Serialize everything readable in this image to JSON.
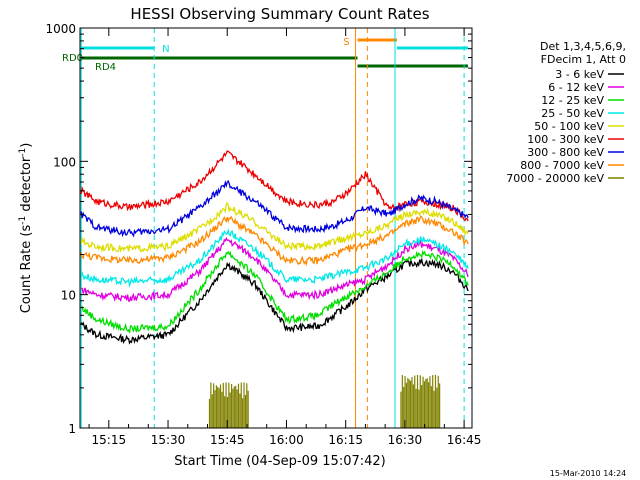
{
  "chart_data": {
    "type": "line",
    "title": "HESSI Observing Summary Count Rates",
    "xlabel": "Start Time (04-Sep-09 15:07:42)",
    "ylabel_main": "Count Rate (s",
    "ylabel_sup1": "-1",
    "ylabel_mid": " detector",
    "ylabel_sup2": "-1",
    "ylabel_end": ")",
    "yscale": "log",
    "ylim": [
      1,
      1000
    ],
    "xlim": [
      "15:07:42",
      "16:47:00"
    ],
    "xlim_min": [
      7.7,
      107
    ],
    "x_tick_labels": [
      "15:15",
      "15:30",
      "15:45",
      "16:00",
      "16:15",
      "16:30",
      "16:45"
    ],
    "x_ticks_min": [
      15,
      30,
      45,
      60,
      75,
      90,
      105
    ],
    "y_tick_labels": [
      "1",
      "10",
      "100",
      "1000"
    ],
    "y_ticks": [
      1,
      10,
      100,
      1000
    ],
    "legend_header": [
      "Det 1,3,4,5,6,9,",
      "FDecim 1, Att 0"
    ],
    "series": [
      {
        "name": "3 - 6 keV",
        "color": "#000000",
        "x": [
          8,
          12,
          20,
          30,
          38,
          45,
          52,
          60,
          68,
          72,
          76,
          80,
          86,
          90,
          94,
          98,
          102,
          106
        ],
        "y": [
          6,
          5,
          4.6,
          5,
          9,
          17,
          12,
          5.6,
          5.8,
          7,
          8.5,
          11,
          14,
          17,
          17.5,
          17,
          15,
          11
        ]
      },
      {
        "name": "6 - 12 keV",
        "color": "#e000e0",
        "x": [
          8,
          12,
          20,
          30,
          38,
          45,
          52,
          60,
          68,
          72,
          76,
          80,
          86,
          90,
          94,
          98,
          102,
          106
        ],
        "y": [
          11,
          10,
          9.5,
          10,
          15,
          26,
          19,
          10,
          10,
          11,
          12,
          13,
          17,
          22,
          24,
          22,
          19,
          14
        ]
      },
      {
        "name": "12 - 25 keV",
        "color": "#00dd00",
        "x": [
          8,
          12,
          20,
          30,
          38,
          45,
          52,
          60,
          68,
          72,
          76,
          80,
          86,
          90,
          94,
          98,
          102,
          106
        ],
        "y": [
          8,
          6.5,
          5.5,
          5.8,
          11,
          21,
          14,
          6.5,
          7,
          8.5,
          10,
          11.5,
          15,
          19,
          20,
          19,
          17,
          12
        ]
      },
      {
        "name": "25 - 50 keV",
        "color": "#00e8e8",
        "x": [
          8,
          12,
          20,
          30,
          38,
          45,
          52,
          60,
          68,
          72,
          76,
          80,
          86,
          90,
          94,
          98,
          102,
          106
        ],
        "y": [
          14,
          13,
          12.5,
          13,
          18,
          30,
          22,
          13,
          13,
          14,
          15,
          16,
          19,
          24,
          26,
          24,
          21,
          16
        ]
      },
      {
        "name": "50 - 100 keV",
        "color": "#dddd00",
        "x": [
          8,
          12,
          20,
          30,
          38,
          45,
          52,
          60,
          68,
          72,
          76,
          80,
          86,
          90,
          94,
          98,
          102,
          106
        ],
        "y": [
          25,
          23,
          22,
          23,
          31,
          46,
          35,
          23,
          23,
          25,
          27,
          29,
          34,
          40,
          42,
          40,
          36,
          29
        ]
      },
      {
        "name": "100 - 300 keV",
        "color": "#ee0000",
        "x": [
          8,
          12,
          20,
          30,
          38,
          45,
          52,
          60,
          68,
          72,
          76,
          80,
          86,
          90,
          94,
          98,
          102,
          106
        ],
        "y": [
          60,
          50,
          45,
          50,
          70,
          115,
          80,
          50,
          47,
          50,
          60,
          80,
          44,
          48,
          50,
          48,
          45,
          36
        ]
      },
      {
        "name": "300 - 800 keV",
        "color": "#0000dd",
        "x": [
          8,
          12,
          20,
          30,
          38,
          45,
          52,
          60,
          68,
          72,
          76,
          80,
          86,
          90,
          94,
          98,
          102,
          106
        ],
        "y": [
          40,
          32,
          29,
          31,
          45,
          68,
          50,
          32,
          31,
          33,
          37,
          45,
          40,
          48,
          53,
          50,
          44,
          38
        ]
      },
      {
        "name": "800 - 7000 keV",
        "color": "#ff8800",
        "x": [
          8,
          12,
          20,
          30,
          38,
          45,
          52,
          60,
          68,
          72,
          76,
          80,
          86,
          90,
          94,
          98,
          102,
          106
        ],
        "y": [
          20,
          19,
          18,
          19,
          25,
          38,
          28,
          18,
          18,
          20,
          22,
          24,
          28,
          34,
          37,
          34,
          30,
          24
        ]
      },
      {
        "name": "7000 - 20000 keV",
        "color": "#808000",
        "x": [
          8,
          12,
          20,
          30,
          38,
          45,
          52,
          60,
          68,
          72,
          76,
          80,
          86,
          90,
          94,
          98,
          102,
          106
        ],
        "y": [
          null,
          null,
          null,
          null,
          null,
          null,
          null,
          null,
          null,
          null,
          null,
          null,
          null,
          null,
          null,
          null,
          null,
          null
        ]
      }
    ],
    "bursts": [
      {
        "color": "#808000",
        "x_start": 40.5,
        "x_end": 50.5,
        "y_low": 1.4,
        "y_high": 2.2
      },
      {
        "color": "#808000",
        "x_start": 89,
        "x_end": 99,
        "y_low": 1.3,
        "y_high": 2.5
      }
    ],
    "annotations": [
      {
        "label": "N",
        "color": "#00e0e0",
        "x": 26.5,
        "y_factor": 1
      },
      {
        "label": "RD0",
        "color": "#006600"
      },
      {
        "label": "RD4",
        "color": "#006600"
      },
      {
        "label": "S",
        "color": "#ff8800"
      }
    ],
    "status_bars": {
      "saa_night": {
        "color": "#00e0e0",
        "segments": [
          [
            8,
            26.5
          ],
          [
            88,
            106
          ]
        ],
        "y": 640
      },
      "rd0": {
        "color": "#006600",
        "segments": [
          [
            8,
            78
          ]
        ],
        "y": 560
      },
      "rd4": {
        "color": "#006600",
        "segments": [
          [
            78,
            106
          ]
        ],
        "y": 480
      },
      "saa": {
        "color": "#ff8800",
        "segments": [
          [
            78,
            88
          ]
        ],
        "y": 730
      }
    },
    "vertical_lines": [
      {
        "color": "#00e0e0",
        "x": 26.5,
        "style": "dashed"
      },
      {
        "color": "#00e0e0",
        "x": 87.5,
        "style": "solid"
      },
      {
        "color": "#00e0e0",
        "x": 105,
        "style": "dashed"
      },
      {
        "color": "#ff8800",
        "x": 77.5,
        "style": "solid"
      },
      {
        "color": "#ff8800",
        "x": 80.5,
        "style": "dashed"
      },
      {
        "color": "#00e0e0",
        "x": 8,
        "style": "solid"
      }
    ],
    "footer_date": "15-Mar-2010 14:24"
  }
}
